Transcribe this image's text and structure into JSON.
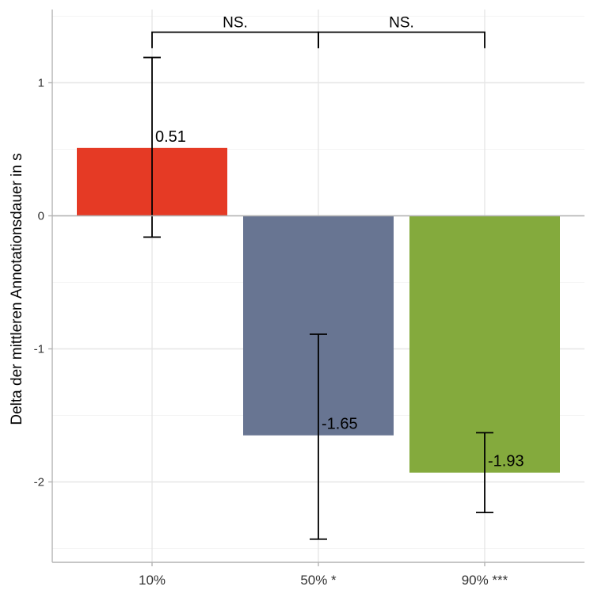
{
  "chart_data": {
    "type": "bar",
    "title": "",
    "xlabel": "",
    "ylabel": "Delta der mittleren Annotationsdauer in s",
    "ylim": [
      -2.5,
      1.5
    ],
    "yticks": [
      -2,
      -1,
      0,
      1
    ],
    "ytick_labels": [
      "-2",
      "-1",
      "0",
      "1"
    ],
    "grid": true,
    "categories": [
      "10%",
      "50% *",
      "90% ***"
    ],
    "values": [
      0.51,
      -1.65,
      -1.93
    ],
    "value_labels": [
      "0.51",
      "-1.65",
      "-1.93"
    ],
    "error_low": [
      -0.16,
      -2.43,
      -2.23
    ],
    "error_high": [
      1.19,
      -0.89,
      -1.63
    ],
    "colors": [
      "#E53A25",
      "#687592",
      "#84AA3D"
    ],
    "significance": [
      {
        "from": 0,
        "to": 1,
        "label": "NS."
      },
      {
        "from": 1,
        "to": 2,
        "label": "NS."
      }
    ],
    "bracket_y": 1.38,
    "bracket_tip_y": 1.26
  }
}
